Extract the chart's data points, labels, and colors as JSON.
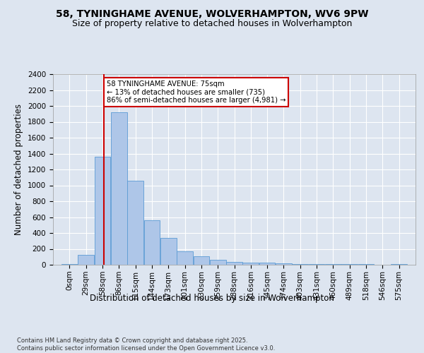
{
  "title": "58, TYNINGHAME AVENUE, WOLVERHAMPTON, WV6 9PW",
  "subtitle": "Size of property relative to detached houses in Wolverhampton",
  "xlabel": "Distribution of detached houses by size in Wolverhampton",
  "ylabel": "Number of detached properties",
  "bar_labels": [
    "0sqm",
    "29sqm",
    "58sqm",
    "86sqm",
    "115sqm",
    "144sqm",
    "173sqm",
    "201sqm",
    "230sqm",
    "259sqm",
    "288sqm",
    "316sqm",
    "345sqm",
    "374sqm",
    "403sqm",
    "431sqm",
    "460sqm",
    "489sqm",
    "518sqm",
    "546sqm",
    "575sqm"
  ],
  "bar_values": [
    10,
    125,
    1360,
    1920,
    1055,
    560,
    335,
    170,
    110,
    65,
    35,
    30,
    25,
    20,
    5,
    5,
    5,
    5,
    5,
    0,
    10
  ],
  "bar_color": "#aec6e8",
  "bar_edge_color": "#5b9bd5",
  "property_line_x": 75,
  "property_line_label": "58 TYNINGHAME AVENUE: 75sqm",
  "annotation_line1": "← 13% of detached houses are smaller (735)",
  "annotation_line2": "86% of semi-detached houses are larger (4,981) →",
  "annotation_box_color": "#ffffff",
  "annotation_box_edge": "#cc0000",
  "vline_color": "#cc0000",
  "ylim": [
    0,
    2400
  ],
  "yticks": [
    0,
    200,
    400,
    600,
    800,
    1000,
    1200,
    1400,
    1600,
    1800,
    2000,
    2200,
    2400
  ],
  "background_color": "#dde5f0",
  "plot_background": "#dde5f0",
  "footer_line1": "Contains HM Land Registry data © Crown copyright and database right 2025.",
  "footer_line2": "Contains public sector information licensed under the Open Government Licence v3.0.",
  "title_fontsize": 10,
  "subtitle_fontsize": 9,
  "axis_label_fontsize": 8.5,
  "tick_fontsize": 7.5,
  "footer_fontsize": 6.0
}
